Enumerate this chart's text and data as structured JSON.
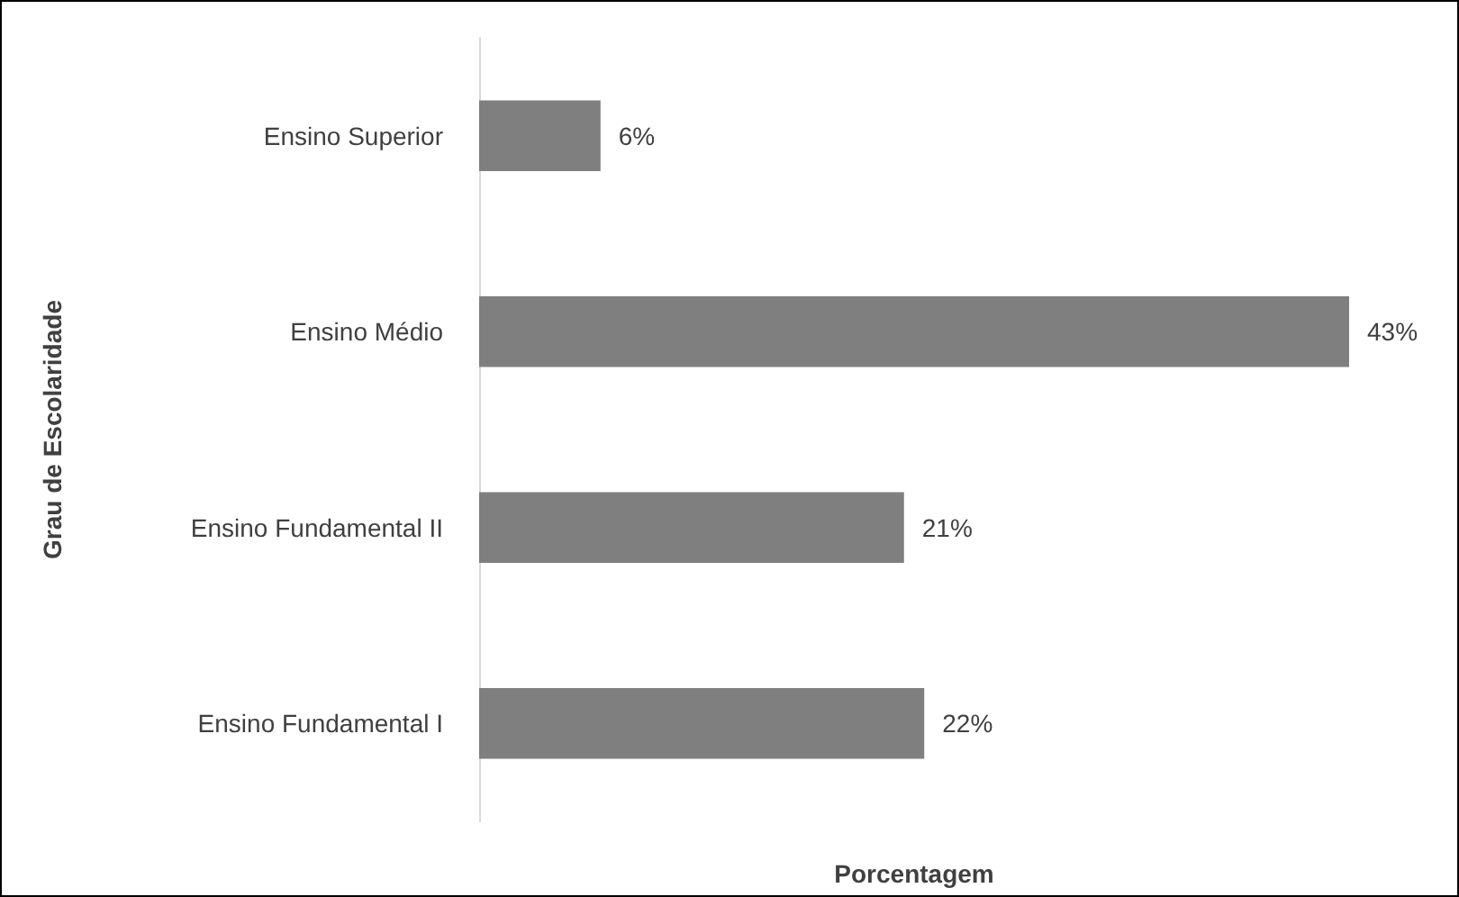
{
  "chart_data": {
    "type": "bar",
    "orientation": "horizontal",
    "xlabel": "Porcentagem",
    "ylabel": "Grau de Escolaridade",
    "categories": [
      "Ensino Superior",
      "Ensino Médio",
      "Ensino Fundamental II",
      "Ensino Fundamental I"
    ],
    "values": [
      6,
      43,
      21,
      22
    ],
    "value_labels": [
      "6%",
      "43%",
      "21%",
      "22%"
    ],
    "color": "#7f7f7f",
    "tick_labels": "y"
  }
}
